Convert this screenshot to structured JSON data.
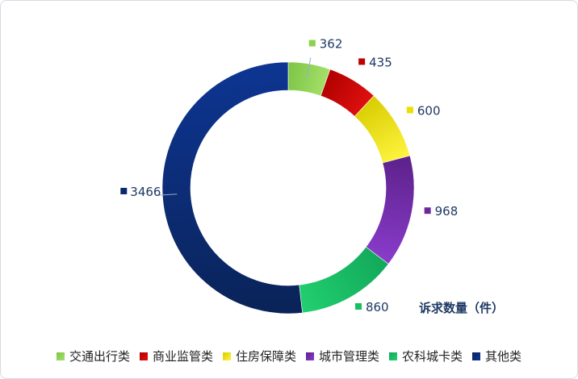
{
  "chart_data": {
    "type": "pie",
    "style": "donut",
    "categories": [
      "交通出行类",
      "商业监管类",
      "住房保障类",
      "城市管理类",
      "农科城卡类",
      "其他类"
    ],
    "values": [
      362,
      435,
      600,
      968,
      860,
      3466
    ],
    "colors": [
      "#8dd14e",
      "#c00000",
      "#e8e000",
      "#6a2a9e",
      "#18c060",
      "#0b2a6e"
    ],
    "gradients": [
      [
        "#7cc545",
        "#a6e06a"
      ],
      [
        "#b00000",
        "#e01010"
      ],
      [
        "#d8cc00",
        "#fff540"
      ],
      [
        "#5b2189",
        "#8a3ccc"
      ],
      [
        "#12a85a",
        "#22d070"
      ],
      [
        "#0a2358",
        "#0d3592"
      ]
    ],
    "title": "",
    "series_label": "诉求数量（件）",
    "legend_position": "bottom"
  }
}
